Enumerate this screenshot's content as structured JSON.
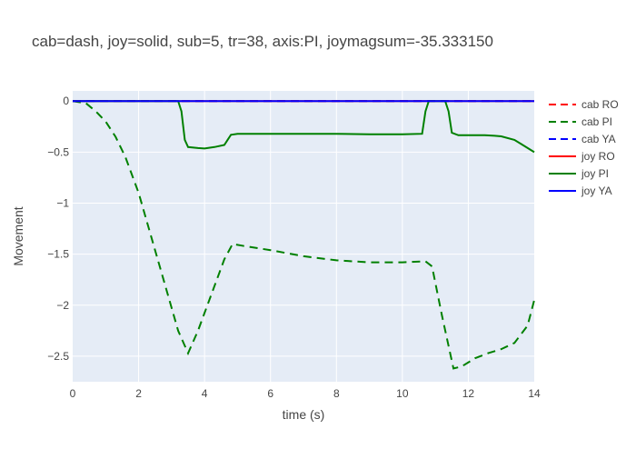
{
  "chart_data": {
    "type": "line",
    "title": "cab=dash, joy=solid, sub=5, tr=38, axis:PI, joymagsum=-35.333150",
    "xlabel": "time (s)",
    "ylabel": "Movement",
    "xlim": [
      0,
      14
    ],
    "ylim": [
      -2.75,
      0.1
    ],
    "xticks": [
      0,
      2,
      4,
      6,
      8,
      10,
      12,
      14
    ],
    "yticks": [
      0,
      -0.5,
      -1,
      -1.5,
      -2,
      -2.5
    ],
    "ytick_labels": [
      "0",
      "−0.5",
      "−1",
      "−1.5",
      "−2",
      "−2.5"
    ],
    "grid": true,
    "legend_position": "right",
    "series": [
      {
        "name": "cab RO",
        "color": "#ff0000",
        "dash": true,
        "x": [
          0,
          14
        ],
        "y": [
          0,
          0
        ]
      },
      {
        "name": "cab PI",
        "color": "#008000",
        "dash": true,
        "x": [
          0,
          0.4,
          0.7,
          1.0,
          1.3,
          1.6,
          2.0,
          2.4,
          2.8,
          3.2,
          3.5,
          3.8,
          4.2,
          4.6,
          4.85,
          5.2,
          6.0,
          7.0,
          8.0,
          9.0,
          10.0,
          10.7,
          10.9,
          11.2,
          11.55,
          11.8,
          12.2,
          12.6,
          13.0,
          13.4,
          13.8,
          14.0
        ],
        "y": [
          0,
          -0.02,
          -0.1,
          -0.2,
          -0.35,
          -0.55,
          -0.9,
          -1.35,
          -1.8,
          -2.25,
          -2.47,
          -2.25,
          -1.9,
          -1.55,
          -1.4,
          -1.42,
          -1.46,
          -1.52,
          -1.56,
          -1.58,
          -1.58,
          -1.57,
          -1.62,
          -2.1,
          -2.62,
          -2.6,
          -2.52,
          -2.47,
          -2.43,
          -2.37,
          -2.2,
          -1.95
        ]
      },
      {
        "name": "cab YA",
        "color": "#0000ff",
        "dash": true,
        "x": [
          0,
          14
        ],
        "y": [
          0,
          0
        ]
      },
      {
        "name": "joy RO",
        "color": "#ff0000",
        "dash": false,
        "x": [
          0,
          14
        ],
        "y": [
          0,
          0
        ]
      },
      {
        "name": "joy PI",
        "color": "#008000",
        "dash": false,
        "x": [
          0,
          3.2,
          3.3,
          3.4,
          3.5,
          3.8,
          4.0,
          4.3,
          4.6,
          4.7,
          4.8,
          5.0,
          6.0,
          7.0,
          8.0,
          9.0,
          10.0,
          10.6,
          10.7,
          10.8,
          11.3,
          11.4,
          11.5,
          11.7,
          12.0,
          12.5,
          12.8,
          13.0,
          13.4,
          13.6,
          13.9,
          14.0
        ],
        "y": [
          0,
          0,
          -0.1,
          -0.38,
          -0.45,
          -0.46,
          -0.465,
          -0.45,
          -0.43,
          -0.38,
          -0.33,
          -0.32,
          -0.32,
          -0.32,
          -0.32,
          -0.325,
          -0.325,
          -0.32,
          -0.1,
          0,
          0,
          -0.1,
          -0.31,
          -0.335,
          -0.335,
          -0.335,
          -0.34,
          -0.345,
          -0.38,
          -0.42,
          -0.48,
          -0.5
        ]
      },
      {
        "name": "joy YA",
        "color": "#0000ff",
        "dash": false,
        "x": [
          0,
          14
        ],
        "y": [
          0,
          0
        ]
      }
    ]
  }
}
